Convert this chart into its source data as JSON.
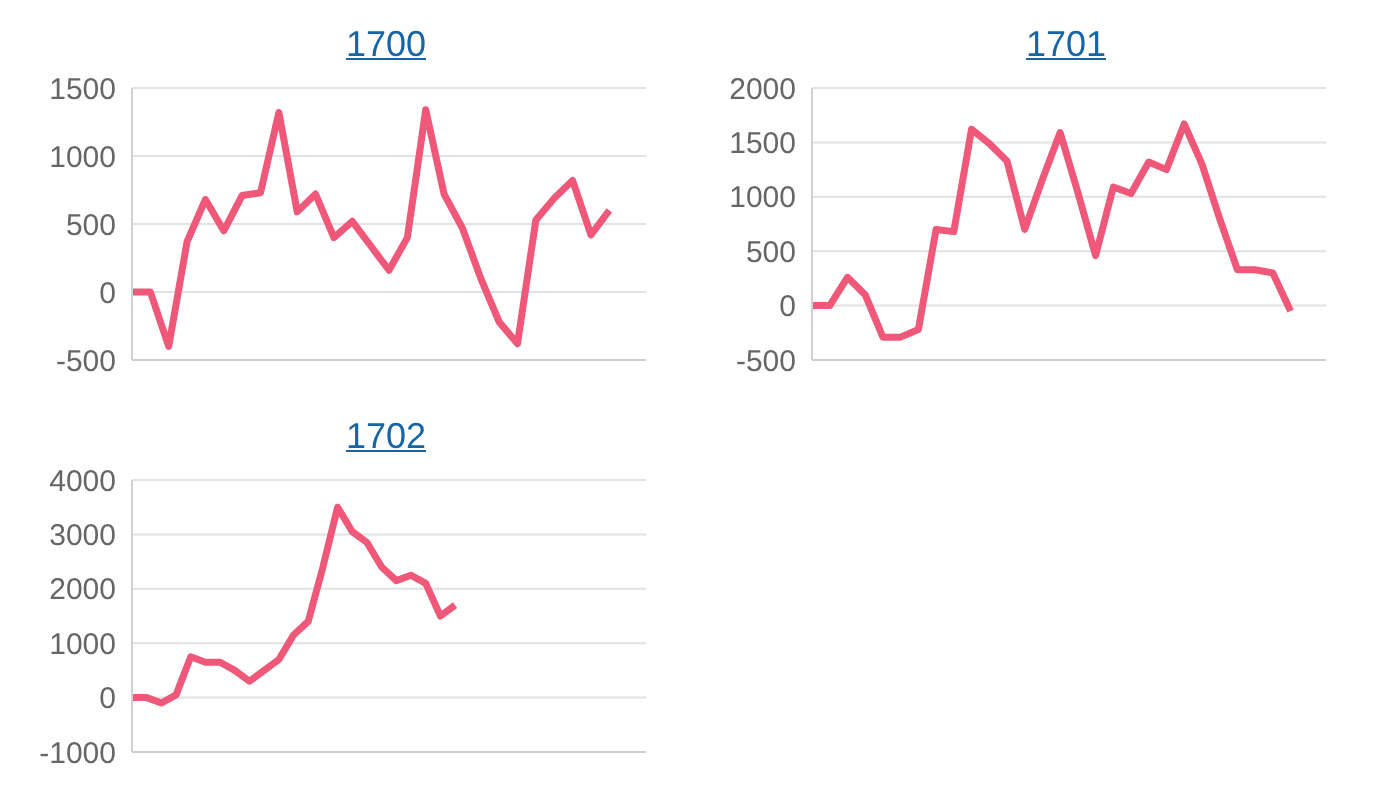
{
  "chart_data": [
    {
      "type": "line",
      "title": "1700",
      "categories": [
        null,
        null,
        null,
        null,
        null,
        null,
        null,
        null,
        null,
        null,
        null,
        null,
        null,
        null,
        null,
        null,
        null,
        null,
        null,
        null,
        null,
        null,
        null,
        null,
        null,
        null,
        null,
        null,
        null
      ],
      "series": [
        {
          "color": "#f0587a",
          "values": [
            0,
            0,
            -400,
            370,
            680,
            450,
            710,
            730,
            1320,
            590,
            720,
            400,
            520,
            340,
            160,
            400,
            1340,
            720,
            470,
            100,
            -220,
            -380,
            530,
            690,
            820,
            420,
            600,
            null,
            null
          ]
        }
      ],
      "ylim": [
        -500,
        1500
      ],
      "yticks": [
        -500,
        0,
        500,
        1000,
        1500
      ],
      "grid": "y",
      "tick_labels": "y",
      "marker": "none",
      "line_style": "solid",
      "legend": false
    },
    {
      "type": "line",
      "title": "1701",
      "categories": [
        null,
        null,
        null,
        null,
        null,
        null,
        null,
        null,
        null,
        null,
        null,
        null,
        null,
        null,
        null,
        null,
        null,
        null,
        null,
        null,
        null,
        null,
        null,
        null,
        null,
        null,
        null,
        null,
        null,
        null
      ],
      "series": [
        {
          "color": "#f0587a",
          "values": [
            0,
            0,
            260,
            100,
            -290,
            -290,
            -220,
            700,
            680,
            1620,
            1490,
            1330,
            700,
            1160,
            1590,
            1040,
            460,
            1090,
            1030,
            1320,
            1250,
            1670,
            1300,
            800,
            330,
            330,
            300,
            -50,
            null,
            null
          ]
        }
      ],
      "ylim": [
        -500,
        2000
      ],
      "yticks": [
        -500,
        0,
        500,
        1000,
        1500,
        2000
      ],
      "grid": "y",
      "tick_labels": "y",
      "marker": "none",
      "line_style": "solid",
      "legend": false
    },
    {
      "type": "line",
      "title": "1702",
      "categories": [
        null,
        null,
        null,
        null,
        null,
        null,
        null,
        null,
        null,
        null,
        null,
        null,
        null,
        null,
        null,
        null,
        null,
        null,
        null,
        null,
        null,
        null,
        null,
        null,
        null,
        null,
        null,
        null,
        null,
        null,
        null,
        null,
        null,
        null,
        null,
        null
      ],
      "series": [
        {
          "color": "#f0587a",
          "values": [
            0,
            0,
            -100,
            50,
            750,
            650,
            650,
            500,
            300,
            500,
            700,
            1150,
            1400,
            2400,
            3500,
            3050,
            2850,
            2400,
            2150,
            2250,
            2100,
            1500,
            1700,
            null,
            null,
            null,
            null,
            null,
            null,
            null,
            null,
            null,
            null,
            null,
            null,
            null
          ]
        }
      ],
      "ylim": [
        -1000,
        4000
      ],
      "yticks": [
        -1000,
        0,
        1000,
        2000,
        3000,
        4000
      ],
      "grid": "y",
      "tick_labels": "y",
      "marker": "none",
      "line_style": "solid",
      "legend": false
    }
  ]
}
